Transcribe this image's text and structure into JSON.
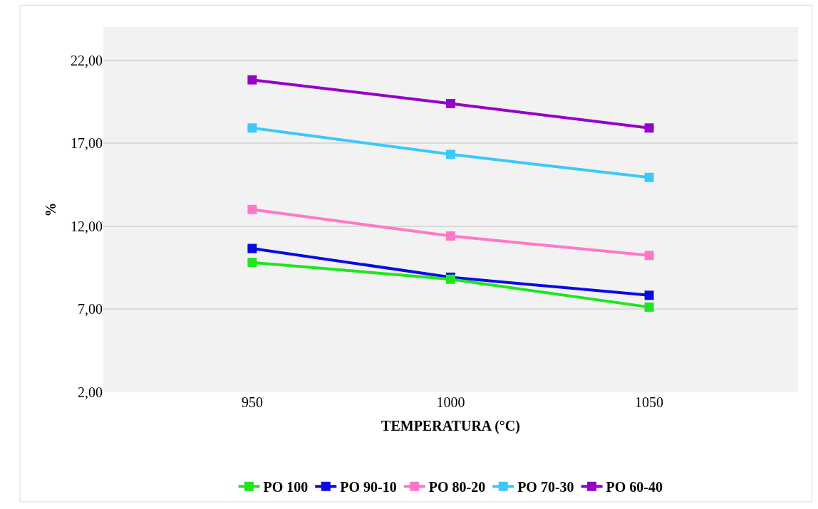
{
  "chart_data": {
    "type": "line",
    "xlabel": "TEMPERATURA (°C)",
    "ylabel": "%",
    "categories": [
      "950",
      "1000",
      "1050"
    ],
    "series": [
      {
        "name": "PO 100",
        "color": "#1ee61e",
        "values": [
          9.82,
          8.81,
          7.13
        ]
      },
      {
        "name": "PO 90-10",
        "color": "#0a0ae6",
        "values": [
          10.66,
          8.93,
          7.84
        ]
      },
      {
        "name": "PO 80-20",
        "color": "#ff78c8",
        "values": [
          13.01,
          11.41,
          10.24
        ]
      },
      {
        "name": "PO 70-30",
        "color": "#3cc8fa",
        "values": [
          17.92,
          16.33,
          14.94
        ]
      },
      {
        "name": "PO 60-40",
        "color": "#9600c8",
        "values": [
          20.82,
          19.39,
          17.92
        ]
      }
    ],
    "ylim": [
      2,
      24
    ],
    "yticks": [
      {
        "value": 2,
        "label": "2,00"
      },
      {
        "value": 7,
        "label": "7,00"
      },
      {
        "value": 12,
        "label": "12,00"
      },
      {
        "value": 17,
        "label": "17,00"
      },
      {
        "value": 22,
        "label": "22,00"
      }
    ],
    "grid": "y",
    "legend": "bottom",
    "marker": "square",
    "line_style": "solid"
  }
}
